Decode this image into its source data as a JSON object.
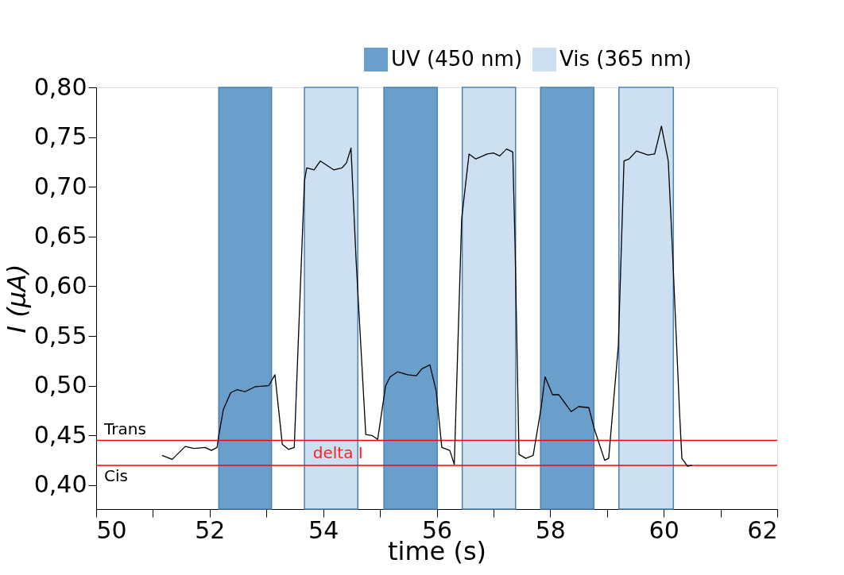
{
  "chart_data": {
    "type": "line",
    "xlabel": "time (s)",
    "ylabel": "I (μA)",
    "x": [
      51.16,
      51.34,
      51.57,
      51.72,
      51.92,
      52.03,
      52.13,
      52.16,
      52.24,
      52.37,
      52.48,
      52.62,
      52.8,
      53.04,
      53.15,
      53.28,
      53.39,
      53.49,
      53.67,
      53.71,
      53.84,
      53.95,
      54.19,
      54.33,
      54.41,
      54.49,
      54.58,
      54.75,
      54.86,
      54.96,
      55.1,
      55.18,
      55.31,
      55.49,
      55.64,
      55.74,
      55.88,
      55.99,
      56.09,
      56.23,
      56.31,
      56.44,
      56.57,
      56.69,
      56.89,
      57.0,
      57.11,
      57.23,
      57.34,
      57.38,
      57.45,
      57.57,
      57.7,
      57.84,
      57.91,
      58.04,
      58.15,
      58.37,
      58.5,
      58.68,
      58.78,
      58.96,
      59.03,
      59.2,
      59.3,
      59.39,
      59.52,
      59.72,
      59.84,
      59.96,
      60.08,
      60.15,
      60.28,
      60.32,
      60.42,
      60.5
    ],
    "series": [
      {
        "color": "#000000",
        "values": [
          0.43,
          0.426,
          0.439,
          0.437,
          0.438,
          0.435,
          0.438,
          0.45,
          0.476,
          0.493,
          0.496,
          0.494,
          0.499,
          0.5,
          0.511,
          0.441,
          0.436,
          0.438,
          0.706,
          0.719,
          0.717,
          0.726,
          0.717,
          0.719,
          0.724,
          0.739,
          0.626,
          0.451,
          0.45,
          0.446,
          0.5,
          0.509,
          0.514,
          0.511,
          0.51,
          0.517,
          0.521,
          0.495,
          0.438,
          0.435,
          0.421,
          0.668,
          0.733,
          0.728,
          0.733,
          0.734,
          0.731,
          0.738,
          0.735,
          0.643,
          0.431,
          0.427,
          0.43,
          0.478,
          0.509,
          0.491,
          0.491,
          0.474,
          0.479,
          0.478,
          0.456,
          0.425,
          0.427,
          0.54,
          0.726,
          0.728,
          0.736,
          0.732,
          0.733,
          0.761,
          0.726,
          0.641,
          0.472,
          0.427,
          0.419,
          0.42
        ]
      }
    ],
    "xlim": [
      50,
      62
    ],
    "ylim": [
      0.376,
      0.8
    ],
    "xticks": [
      50,
      {
        "value": 51,
        "label": null
      },
      52,
      {
        "value": 53,
        "label": null
      },
      54,
      {
        "value": 55,
        "label": null
      },
      56,
      {
        "value": 57,
        "label": null
      },
      58,
      {
        "value": 59,
        "label": null
      },
      60,
      {
        "value": 61,
        "label": null
      },
      62
    ],
    "yticks": [
      {
        "value": 0.4,
        "label": "0,40"
      },
      {
        "value": 0.45,
        "label": "0,45"
      },
      {
        "value": 0.5,
        "label": "0,50"
      },
      {
        "value": 0.55,
        "label": "0,55"
      },
      {
        "value": 0.6,
        "label": "0,60"
      },
      {
        "value": 0.65,
        "label": "0,65"
      },
      {
        "value": 0.7,
        "label": "0,70"
      },
      {
        "value": 0.75,
        "label": "0,75"
      },
      {
        "value": 0.8,
        "label": "0,80"
      }
    ],
    "bands": [
      {
        "axis": "x",
        "from": 52.16,
        "to": 53.09,
        "label": "UV (450 nm)",
        "color": "#6a9ecb"
      },
      {
        "axis": "x",
        "from": 53.67,
        "to": 54.61,
        "label": "Vis (365 nm)",
        "color": "#cce0f2"
      },
      {
        "axis": "x",
        "from": 55.07,
        "to": 56.01,
        "color": "#6a9ecb"
      },
      {
        "axis": "x",
        "from": 56.45,
        "to": 57.39,
        "color": "#cce0f2"
      },
      {
        "axis": "x",
        "from": 57.83,
        "to": 58.77,
        "color": "#6a9ecb"
      },
      {
        "axis": "x",
        "from": 59.21,
        "to": 60.17,
        "color": "#cce0f2"
      }
    ],
    "ref_lines": [
      {
        "axis": "y",
        "value": 0.445,
        "label": "Trans",
        "color": "#ff0000"
      },
      {
        "axis": "y",
        "value": 0.42,
        "label": "Cis",
        "color": "#ff0000"
      }
    ],
    "annotations": [
      "delta I"
    ],
    "legend": "top right",
    "grid": false,
    "marker": "none",
    "line_style": "solid"
  }
}
